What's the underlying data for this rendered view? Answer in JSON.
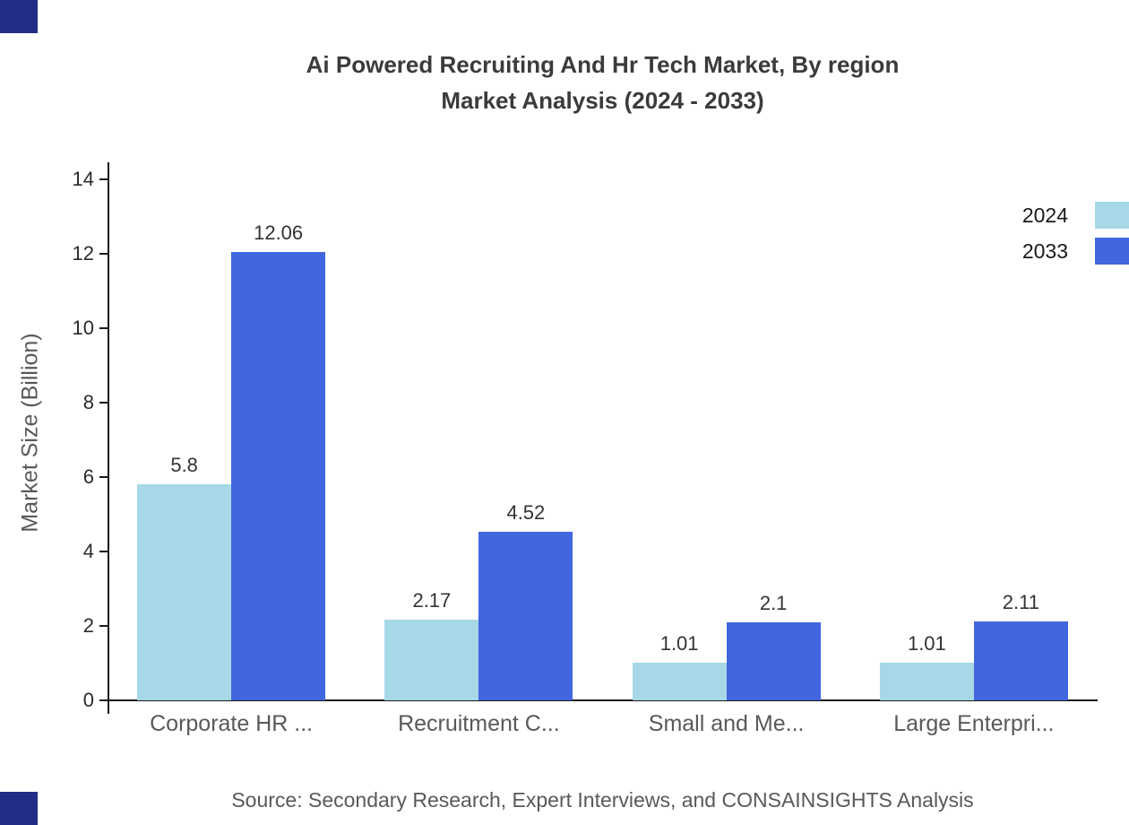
{
  "title": {
    "line1": "Ai Powered Recruiting And Hr Tech Market, By region",
    "line2": "Market Analysis (2024 - 2033)"
  },
  "source": "Source: Secondary Research, Expert Interviews, and CONSAINSIGHTS Analysis",
  "colors": {
    "series_2024": "#a7d8e8",
    "series_2033": "#4166dd",
    "corner_mark": "#222d87",
    "axis": "#1a1a1a"
  },
  "chart_data": {
    "type": "bar",
    "title": "Ai Powered Recruiting And Hr Tech Market, By region Market Analysis (2024 - 2033)",
    "categories": [
      "Corporate HR ...",
      "Recruitment C...",
      "Small and Me...",
      "Large Enterpri..."
    ],
    "series": [
      {
        "name": "2024",
        "color": "#a7d8e8",
        "values": [
          5.8,
          2.17,
          1.01,
          1.01
        ]
      },
      {
        "name": "2033",
        "color": "#4166dd",
        "values": [
          12.06,
          4.52,
          2.1,
          2.11
        ]
      }
    ],
    "xlabel": "",
    "ylabel": "Market Size (Billion)",
    "ylim": [
      0,
      14
    ],
    "yticks": [
      0,
      2,
      4,
      6,
      8,
      10,
      12,
      14
    ],
    "grid": false,
    "legend_position": "top-right"
  }
}
